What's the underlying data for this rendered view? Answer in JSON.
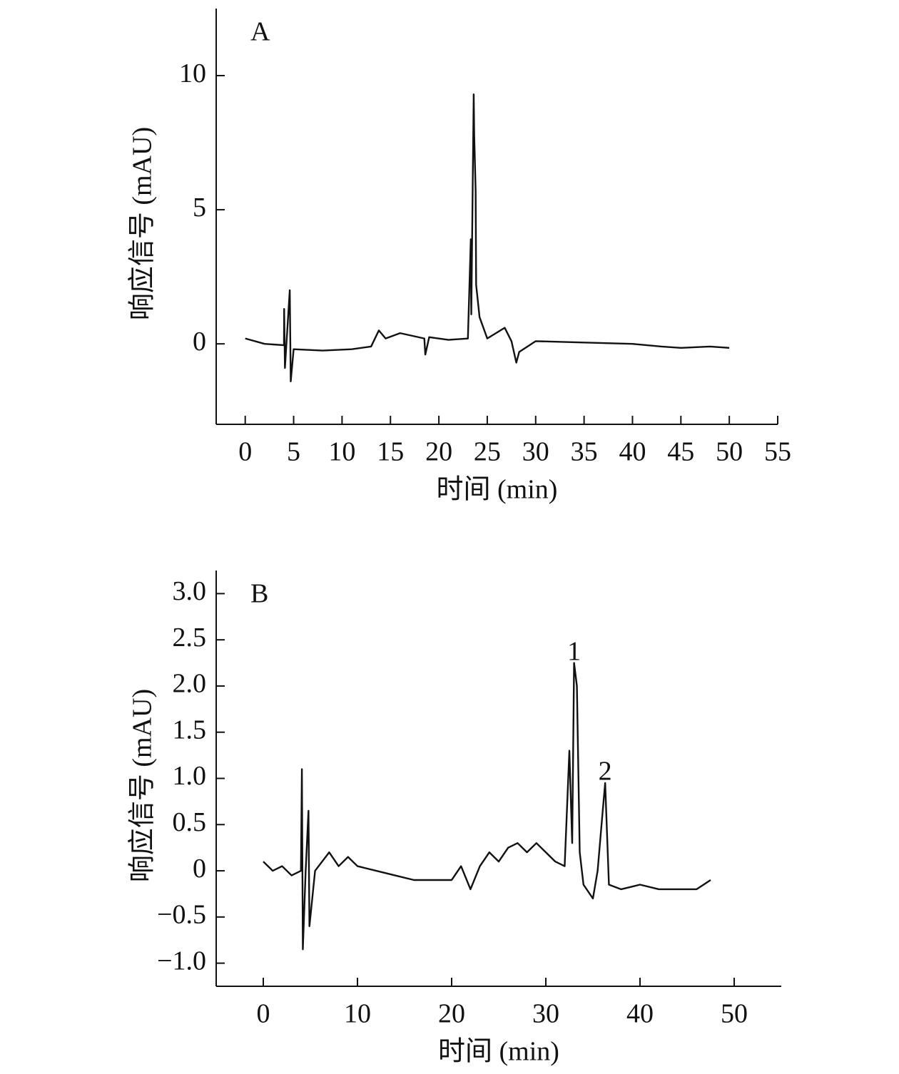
{
  "chart_data": [
    {
      "type": "line",
      "title": "A",
      "x_label": "时间 (min)",
      "y_label": "响应信号 (mAU)",
      "color": "#111111",
      "x": [
        0,
        2,
        4,
        4.02,
        4.1,
        4.6,
        4.7,
        5,
        8,
        11,
        13,
        13.8,
        14.5,
        16,
        18.5,
        18.6,
        19,
        21,
        23,
        23.3,
        23.35,
        23.6,
        23.65,
        23.8,
        23.85,
        24.2,
        25,
        26.8,
        27.5,
        28,
        28.3,
        30,
        35,
        40,
        43,
        45,
        48,
        50
      ],
      "values": [
        0.2,
        0.0,
        -0.05,
        1.3,
        -0.9,
        2.0,
        -1.4,
        -0.2,
        -0.25,
        -0.2,
        -0.1,
        0.5,
        0.2,
        0.4,
        0.2,
        -0.4,
        0.25,
        0.15,
        0.2,
        3.9,
        1.1,
        9.3,
        7.8,
        5.7,
        2.2,
        1.0,
        0.2,
        0.6,
        0.1,
        -0.7,
        -0.3,
        0.1,
        0.05,
        0.0,
        -0.1,
        -0.15,
        -0.1,
        -0.15
      ],
      "xlim": [
        -3,
        55
      ],
      "xticks": [
        0,
        5,
        10,
        15,
        20,
        25,
        30,
        35,
        40,
        45,
        50,
        55
      ],
      "ylim": [
        -3,
        12.5
      ],
      "yticks": [
        0,
        5,
        10
      ]
    },
    {
      "type": "line",
      "title": "B",
      "x_label": "时间 (min)",
      "y_label": "响应信号 (mAU)",
      "color": "#111111",
      "x": [
        0,
        1,
        2,
        3,
        4,
        4.1,
        4.2,
        4.5,
        4.8,
        4.9,
        5.5,
        7,
        8,
        9,
        10,
        12,
        14,
        16,
        18,
        20,
        21,
        22,
        23,
        24,
        25,
        26,
        27,
        28,
        29,
        30,
        31,
        32,
        32.5,
        32.8,
        33,
        33.3,
        33.6,
        34,
        35,
        35.5,
        36,
        36.3,
        36.7,
        38,
        40,
        42,
        44,
        46,
        47.5
      ],
      "values": [
        0.1,
        0.0,
        0.05,
        -0.05,
        0.0,
        1.1,
        -0.85,
        0.0,
        0.65,
        -0.6,
        0.0,
        0.2,
        0.05,
        0.15,
        0.05,
        0.0,
        -0.05,
        -0.1,
        -0.1,
        -0.1,
        0.05,
        -0.2,
        0.05,
        0.2,
        0.1,
        0.25,
        0.3,
        0.2,
        0.3,
        0.2,
        0.1,
        0.05,
        1.3,
        0.3,
        2.25,
        2.0,
        0.2,
        -0.15,
        -0.3,
        0.0,
        0.6,
        0.95,
        -0.15,
        -0.2,
        -0.15,
        -0.2,
        -0.2,
        -0.2,
        -0.1
      ],
      "xlim": [
        -5,
        55
      ],
      "xticks": [
        0,
        10,
        20,
        30,
        40,
        50
      ],
      "ylim": [
        -1.25,
        3.25
      ],
      "yticks": [
        {
          "value": -1,
          "label": "−1.0"
        },
        {
          "value": -0.5,
          "label": "−0.5"
        },
        0,
        0.5,
        {
          "value": 1,
          "label": "1.0"
        },
        1.5,
        {
          "value": 2,
          "label": "2.0"
        },
        2.5,
        {
          "value": 3,
          "label": "3.0"
        }
      ],
      "annotations": [
        {
          "text": "1",
          "x": 33.0,
          "y": 2.35
        },
        {
          "text": "2",
          "x": 36.3,
          "y": 1.05
        }
      ]
    }
  ]
}
